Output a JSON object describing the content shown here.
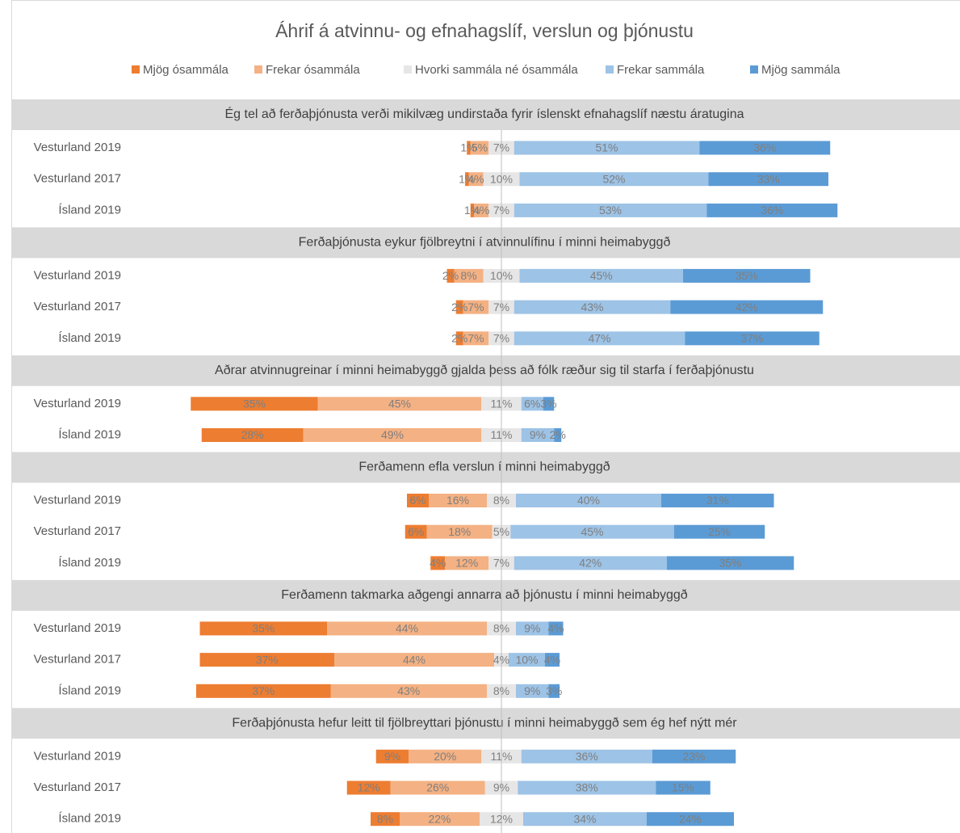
{
  "chart_data": {
    "type": "diverging_bar",
    "title": "Áhrif á atvinnu- og efnahagslíf, verslun og þjónustu",
    "series": [
      {
        "name": "Mjög ósammála",
        "color": "#ed7d31"
      },
      {
        "name": "Frekar ósammála",
        "color": "#f4b183"
      },
      {
        "name": "Hvorki sammála né ósammála",
        "color": "#e7e6e6"
      },
      {
        "name": "Frekar sammála",
        "color": "#9dc3e6"
      },
      {
        "name": "Mjög sammála",
        "color": "#5b9bd5"
      }
    ],
    "groups": [
      {
        "title": "Ég tel að ferðaþjónusta verði mikilvæg undirstaða fyrir íslenskt efnahagslíf næstu áratugina",
        "rows": [
          {
            "label": "Vesturland 2019",
            "values": [
              1,
              5,
              7,
              51,
              36
            ],
            "value_labels": [
              "1%",
              "5%",
              "7%",
              "51%",
              "36%"
            ]
          },
          {
            "label": "Vesturland 2017",
            "values": [
              1,
              4,
              10,
              52,
              33
            ],
            "value_labels": [
              "1%",
              "4%",
              "10%",
              "52%",
              "33%"
            ]
          },
          {
            "label": "Ísland 2019",
            "values": [
              1,
              4,
              7,
              53,
              36
            ],
            "value_labels": [
              "1%",
              "4%",
              "7%",
              "53%",
              "36%"
            ]
          }
        ]
      },
      {
        "title": "Ferðaþjónusta eykur fjölbreytni í atvinnulífinu í minni heimabyggð",
        "rows": [
          {
            "label": "Vesturland 2019",
            "values": [
              2,
              8,
              10,
              45,
              35
            ],
            "value_labels": [
              "2%",
              "8%",
              "10%",
              "45%",
              "35%"
            ]
          },
          {
            "label": "Vesturland 2017",
            "values": [
              2,
              7,
              7,
              43,
              42
            ],
            "value_labels": [
              "2%",
              "7%",
              "7%",
              "43%",
              "42%"
            ]
          },
          {
            "label": "Ísland 2019",
            "values": [
              2,
              7,
              7,
              47,
              37
            ],
            "value_labels": [
              "2%",
              "7%",
              "7%",
              "47%",
              "37%"
            ]
          }
        ]
      },
      {
        "title": "Aðrar atvinnugreinar í minni heimabyggð gjalda þess að fólk ræður sig til starfa í ferðaþjónustu",
        "rows": [
          {
            "label": "Vesturland 2019",
            "values": [
              35,
              45,
              11,
              6,
              3
            ],
            "value_labels": [
              "35%",
              "45%",
              "11%",
              "6%",
              "3%"
            ]
          },
          {
            "label": "Ísland 2019",
            "values": [
              28,
              49,
              11,
              9,
              2
            ],
            "value_labels": [
              "28%",
              "49%",
              "11%",
              "9%",
              "2%"
            ]
          }
        ]
      },
      {
        "title": "Ferðamenn efla verslun í minni heimabyggð",
        "rows": [
          {
            "label": "Vesturland 2019",
            "values": [
              6,
              16,
              8,
              40,
              31
            ],
            "value_labels": [
              "6%",
              "16%",
              "8%",
              "40%",
              "31%"
            ]
          },
          {
            "label": "Vesturland 2017",
            "values": [
              6,
              18,
              5,
              45,
              25
            ],
            "value_labels": [
              "6%",
              "18%",
              "5%",
              "45%",
              "25%"
            ]
          },
          {
            "label": "Ísland 2019",
            "values": [
              4,
              12,
              7,
              42,
              35
            ],
            "value_labels": [
              "4%",
              "12%",
              "7%",
              "42%",
              "35%"
            ]
          }
        ]
      },
      {
        "title": "Ferðamenn takmarka aðgengi annarra að þjónustu í minni heimabyggð",
        "rows": [
          {
            "label": "Vesturland 2019",
            "values": [
              35,
              44,
              8,
              9,
              4
            ],
            "value_labels": [
              "35%",
              "44%",
              "8%",
              "9%",
              "4%"
            ]
          },
          {
            "label": "Vesturland 2017",
            "values": [
              37,
              44,
              4,
              10,
              4
            ],
            "value_labels": [
              "37%",
              "44%",
              "4%",
              "10%",
              "4%"
            ]
          },
          {
            "label": "Ísland 2019",
            "values": [
              37,
              43,
              8,
              9,
              3
            ],
            "value_labels": [
              "37%",
              "43%",
              "8%",
              "9%",
              "3%"
            ]
          }
        ]
      },
      {
        "title": "Ferðaþjónusta hefur leitt til fjölbreyttari þjónustu í minni heimabyggð sem ég hef nýtt mér",
        "rows": [
          {
            "label": "Vesturland 2019",
            "values": [
              9,
              20,
              11,
              36,
              23
            ],
            "value_labels": [
              "9%",
              "20%",
              "11%",
              "36%",
              "23%"
            ]
          },
          {
            "label": "Vesturland 2017",
            "values": [
              12,
              26,
              9,
              38,
              15
            ],
            "value_labels": [
              "12%",
              "26%",
              "9%",
              "38%",
              "15%"
            ]
          },
          {
            "label": "Ísland 2019",
            "values": [
              8,
              22,
              12,
              34,
              24
            ],
            "value_labels": [
              "8%",
              "22%",
              "12%",
              "34%",
              "24%"
            ]
          }
        ]
      }
    ]
  }
}
